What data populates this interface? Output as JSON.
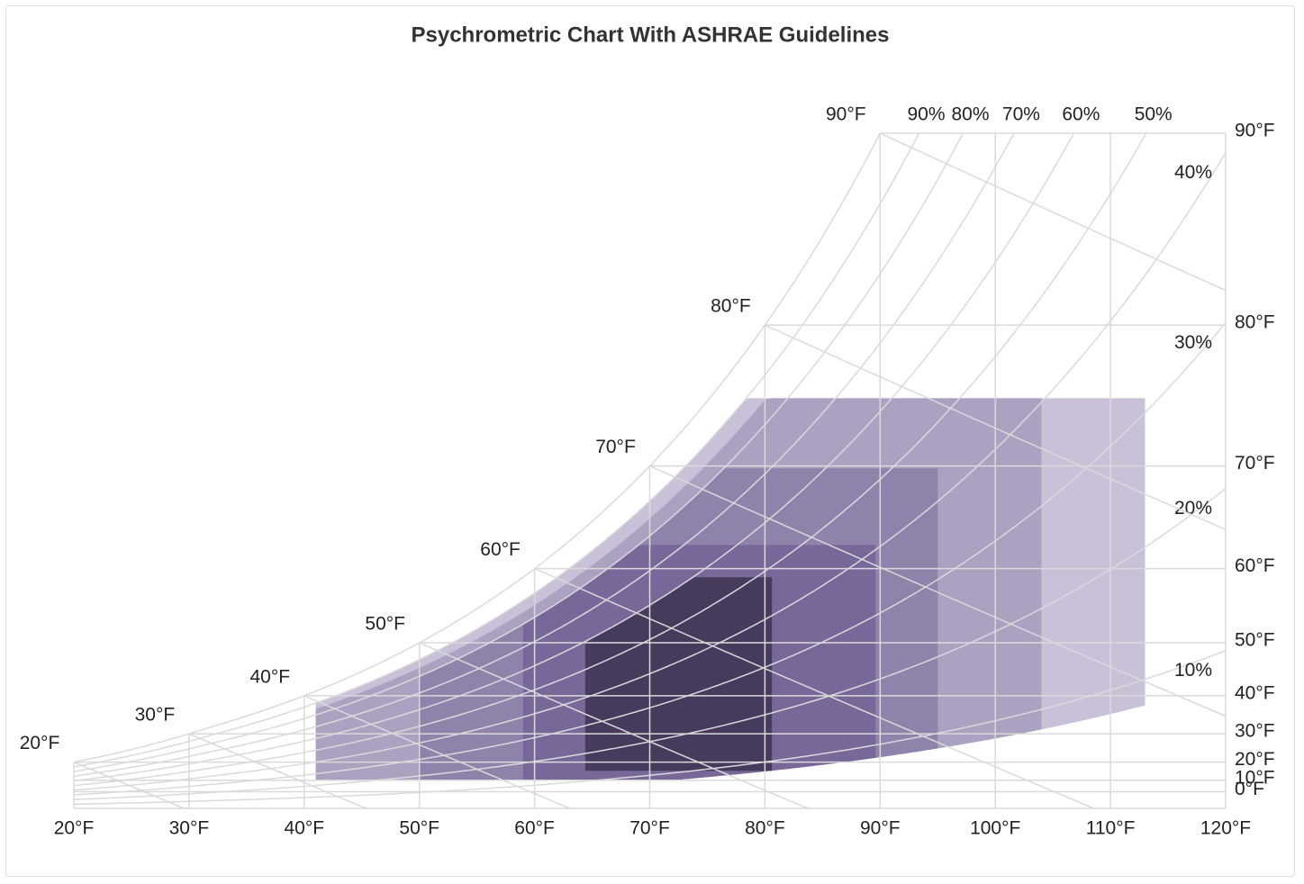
{
  "chart_data": {
    "type": "psychrometric",
    "title": "Psychrometric Chart With ASHRAE Guidelines",
    "xlim": [
      20,
      120
    ],
    "xticks": [
      {
        "value": 20,
        "label": "20°F"
      },
      {
        "value": 30,
        "label": "30°F"
      },
      {
        "value": 40,
        "label": "40°F"
      },
      {
        "value": 50,
        "label": "50°F"
      },
      {
        "value": 60,
        "label": "60°F"
      },
      {
        "value": 70,
        "label": "70°F"
      },
      {
        "value": 80,
        "label": "80°F"
      },
      {
        "value": 90,
        "label": "90°F"
      },
      {
        "value": 100,
        "label": "100°F"
      },
      {
        "value": 110,
        "label": "110°F"
      },
      {
        "value": 120,
        "label": "120°F"
      }
    ],
    "y_scale": "humidity-ratio",
    "ylim": [
      -60,
      90
    ],
    "yticks": [
      {
        "value": 0,
        "label": "0°F"
      },
      {
        "value": 10,
        "label": "10°F"
      },
      {
        "value": 20,
        "label": "20°F"
      },
      {
        "value": 30,
        "label": "30°F"
      },
      {
        "value": 40,
        "label": "40°F"
      },
      {
        "value": 50,
        "label": "50°F"
      },
      {
        "value": 60,
        "label": "60°F"
      },
      {
        "value": 70,
        "label": "70°F"
      },
      {
        "value": 80,
        "label": "80°F"
      },
      {
        "value": 90,
        "label": "90°F"
      }
    ],
    "wet_bulb": [
      {
        "value": 20,
        "label": "20°F"
      },
      {
        "value": 30,
        "label": "30°F"
      },
      {
        "value": 40,
        "label": "40°F"
      },
      {
        "value": 50,
        "label": "50°F"
      },
      {
        "value": 60,
        "label": "60°F"
      },
      {
        "value": 70,
        "label": "70°F"
      },
      {
        "value": 80,
        "label": "80°F"
      },
      {
        "value": 90,
        "label": "90°F"
      }
    ],
    "relative_humidity": [
      {
        "value": 10,
        "label": "10%"
      },
      {
        "value": 20,
        "label": "20%"
      },
      {
        "value": 30,
        "label": "30%"
      },
      {
        "value": 40,
        "label": "40%"
      },
      {
        "value": 50,
        "label": "50%"
      },
      {
        "value": 60,
        "label": "60%"
      },
      {
        "value": 70,
        "label": "70%"
      },
      {
        "value": 80,
        "label": "80%"
      },
      {
        "value": 90,
        "label": "90%"
      }
    ],
    "zones": [
      {
        "color": "#c9c1d8",
        "db_min": 41,
        "db_max": 113,
        "dp_min": 10.4,
        "dp_max": 75.2,
        "rh_min": 8,
        "rh_max": 90
      },
      {
        "color": "#aba1c1",
        "db_min": 41,
        "db_max": 104,
        "dp_min": 10.4,
        "dp_max": 75.2,
        "rh_min": 8,
        "rh_max": 85
      },
      {
        "color": "#8f83ab",
        "db_min": 50,
        "db_max": 95,
        "dp_min": 10.4,
        "dp_max": 69.8,
        "rh_min": 8,
        "rh_max": 80
      },
      {
        "color": "#776899",
        "db_min": 59,
        "db_max": 89.6,
        "dp_min": 10.4,
        "dp_max": 62.6,
        "rh_min": 8,
        "rh_max": 80
      },
      {
        "color": "#463b5c",
        "db_min": 64.4,
        "db_max": 80.6,
        "dp_min": 15.8,
        "dp_max": 59,
        "rh_max": 60
      }
    ]
  }
}
